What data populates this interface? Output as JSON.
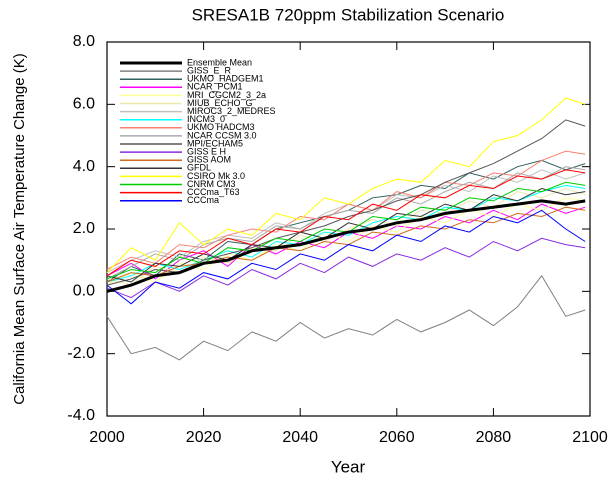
{
  "chart_data": {
    "type": "line",
    "title": "SRESA1B 720ppm Stabilization Scenario",
    "x_label": "Year",
    "y_label": "California Mean Surface Air Temperature Change (K)",
    "x": [
      2000,
      2005,
      2010,
      2015,
      2020,
      2025,
      2030,
      2035,
      2040,
      2045,
      2050,
      2055,
      2060,
      2065,
      2070,
      2075,
      2080,
      2085,
      2090,
      2095,
      2099
    ],
    "xlim": [
      2000,
      2100
    ],
    "xticks": [
      2000,
      2020,
      2040,
      2060,
      2080,
      2100
    ],
    "ylim": [
      -4,
      8
    ],
    "yticks": [
      {
        "value": -4,
        "label": "-4.0"
      },
      {
        "value": -2,
        "label": "-2.0"
      },
      {
        "value": 0,
        "label": "0.0"
      },
      {
        "value": 2,
        "label": "2.0"
      },
      {
        "value": 4,
        "label": "4.0"
      },
      {
        "value": 6,
        "label": "6.0"
      },
      {
        "value": 8,
        "label": "8.0"
      }
    ],
    "legend": "upper left",
    "series": [
      {
        "name": "Ensemble Mean",
        "color": "#000000",
        "values": [
          0,
          0.2,
          0.5,
          0.6,
          0.9,
          1.0,
          1.3,
          1.4,
          1.5,
          1.7,
          1.9,
          2.0,
          2.2,
          2.3,
          2.5,
          2.6,
          2.7,
          2.8,
          2.9,
          2.8,
          2.9
        ]
      },
      {
        "name": "GISS_E_R",
        "color": "#808080",
        "values": [
          -0.8,
          -2.0,
          -1.8,
          -2.2,
          -1.6,
          -1.9,
          -1.3,
          -1.6,
          -1.0,
          -1.5,
          -1.2,
          -1.4,
          -0.9,
          -1.3,
          -1.0,
          -0.6,
          -1.1,
          -0.5,
          0.5,
          -0.8,
          -0.6
        ]
      },
      {
        "name": "UKMO_HADGEM1",
        "color": "#2f5f5f",
        "values": [
          0.3,
          0.8,
          0.5,
          1.2,
          1.0,
          1.6,
          1.5,
          2.0,
          2.2,
          2.4,
          2.6,
          3.0,
          3.1,
          3.4,
          3.3,
          3.8,
          3.6,
          4.0,
          4.2,
          3.9,
          4.1
        ]
      },
      {
        "name": "NCAR_PCM1",
        "color": "#ff00ff",
        "values": [
          0.5,
          0.9,
          0.4,
          1.0,
          1.3,
          0.8,
          1.5,
          1.2,
          1.6,
          1.4,
          1.9,
          1.7,
          2.1,
          2.0,
          2.4,
          2.2,
          2.6,
          2.3,
          2.8,
          2.5,
          2.7
        ]
      },
      {
        "name": "MRI_CGCM2_3_2a",
        "color": "#ffff99",
        "values": [
          0.2,
          0.6,
          0.3,
          0.9,
          0.7,
          1.2,
          1.0,
          1.5,
          1.3,
          1.9,
          1.6,
          2.1,
          1.9,
          2.4,
          2.2,
          2.6,
          2.4,
          2.8,
          2.6,
          3.0,
          2.9
        ]
      },
      {
        "name": "MIUB_ECHO_G",
        "color": "#eee8aa",
        "values": [
          0.4,
          0.2,
          0.8,
          0.6,
          1.1,
          0.9,
          1.4,
          1.3,
          1.8,
          1.6,
          2.0,
          2.3,
          2.1,
          2.6,
          2.5,
          2.9,
          2.7,
          3.2,
          3.0,
          3.3,
          3.1
        ]
      },
      {
        "name": "MIROC3_2_MEDRES",
        "color": "#c0c0c0",
        "values": [
          0.6,
          1.0,
          1.3,
          1.1,
          1.6,
          1.8,
          1.7,
          2.2,
          2.0,
          2.5,
          2.8,
          2.6,
          3.1,
          3.0,
          3.4,
          3.2,
          3.7,
          3.5,
          3.9,
          3.6,
          3.8
        ]
      },
      {
        "name": "INCM3_0",
        "color": "#00ffff",
        "values": [
          0.3,
          0.5,
          0.9,
          0.7,
          1.0,
          1.3,
          1.1,
          1.6,
          1.5,
          1.9,
          1.8,
          2.2,
          2.4,
          2.3,
          2.7,
          2.6,
          3.0,
          2.9,
          3.2,
          3.4,
          3.3
        ]
      },
      {
        "name": "UKMO HADCM3",
        "color": "#fa8072",
        "values": [
          0.7,
          1.1,
          0.9,
          1.5,
          1.4,
          1.8,
          2.0,
          1.9,
          2.4,
          2.3,
          2.8,
          2.6,
          3.2,
          3.0,
          3.5,
          3.4,
          3.8,
          3.7,
          4.2,
          4.5,
          4.4
        ]
      },
      {
        "name": "NCAR CCSM 3.0",
        "color": "#aaaaaa",
        "values": [
          0.4,
          0.8,
          1.2,
          1.0,
          1.5,
          1.7,
          1.6,
          2.1,
          2.0,
          2.4,
          2.6,
          2.5,
          3.0,
          2.8,
          3.2,
          3.5,
          3.3,
          3.8,
          3.6,
          4.0,
          3.9
        ]
      },
      {
        "name": "MPI/ECHAM5",
        "color": "#555555",
        "values": [
          0.2,
          0.4,
          0.7,
          0.6,
          1.0,
          1.2,
          1.4,
          1.7,
          1.9,
          2.1,
          2.4,
          2.6,
          2.9,
          3.1,
          3.5,
          3.8,
          4.1,
          4.5,
          4.9,
          5.5,
          5.3
        ]
      },
      {
        "name": "GISS E H",
        "color": "#8a2be2",
        "values": [
          0.1,
          -0.2,
          0.3,
          0.0,
          0.5,
          0.2,
          0.7,
          0.4,
          0.9,
          0.6,
          1.1,
          0.8,
          1.2,
          1.0,
          1.4,
          1.1,
          1.6,
          1.3,
          1.7,
          1.5,
          1.4
        ]
      },
      {
        "name": "GISS AOM",
        "color": "#d2691e",
        "values": [
          0.3,
          0.6,
          0.5,
          0.8,
          0.9,
          1.1,
          1.0,
          1.4,
          1.3,
          1.6,
          1.5,
          1.9,
          1.8,
          2.1,
          2.0,
          2.3,
          2.2,
          2.5,
          2.4,
          2.7,
          2.6
        ]
      },
      {
        "name": "GFDL",
        "color": "#333333",
        "values": [
          0.5,
          0.3,
          0.9,
          0.8,
          1.2,
          1.0,
          1.5,
          1.4,
          1.9,
          1.7,
          2.2,
          2.0,
          2.5,
          2.4,
          2.8,
          2.6,
          3.1,
          2.9,
          3.3,
          3.1,
          3.2
        ]
      },
      {
        "name": "CSIRO Mk 3.0",
        "color": "#ffff00",
        "values": [
          0.6,
          1.4,
          1.0,
          2.2,
          1.5,
          2.0,
          1.8,
          2.5,
          2.3,
          3.0,
          2.8,
          3.3,
          3.6,
          3.5,
          4.2,
          4.0,
          4.8,
          5.0,
          5.5,
          6.2,
          6.0
        ]
      },
      {
        "name": "CNRM CM3",
        "color": "#00cc00",
        "values": [
          0.4,
          0.7,
          0.6,
          1.1,
          0.9,
          1.4,
          1.3,
          1.7,
          1.6,
          2.0,
          1.9,
          2.4,
          2.3,
          2.7,
          2.6,
          3.0,
          2.9,
          3.3,
          3.2,
          3.5,
          3.4
        ]
      },
      {
        "name": "CCCma_T63",
        "color": "#ff0000",
        "values": [
          0.5,
          1.0,
          0.8,
          1.3,
          1.2,
          1.7,
          1.5,
          2.0,
          1.9,
          2.4,
          2.3,
          2.8,
          2.6,
          3.1,
          3.0,
          3.4,
          3.3,
          3.7,
          3.6,
          3.9,
          3.8
        ]
      },
      {
        "name": "CCCma",
        "color": "#0000ff",
        "values": [
          0.2,
          -0.4,
          0.3,
          0.1,
          0.6,
          0.4,
          0.9,
          0.7,
          1.2,
          1.0,
          1.5,
          1.3,
          1.8,
          1.6,
          2.1,
          1.9,
          2.4,
          2.2,
          2.6,
          2.0,
          1.6
        ]
      }
    ]
  }
}
